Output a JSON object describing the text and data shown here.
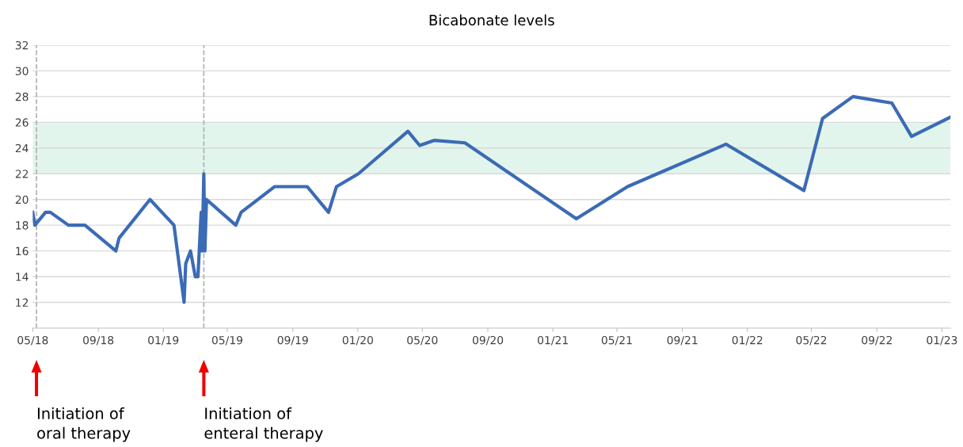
{
  "chart_data": {
    "type": "line",
    "title": "Bicabonate levels",
    "x": [
      "2018-05-01",
      "2018-05-05",
      "2018-05-25",
      "2018-06-03",
      "2018-07-07",
      "2018-08-07",
      "2018-10-04",
      "2018-10-10",
      "2018-12-07",
      "2019-01-21",
      "2019-02-09",
      "2019-02-12",
      "2019-02-21",
      "2019-03-02",
      "2019-03-07",
      "2019-03-13",
      "2019-03-15",
      "2019-03-18",
      "2019-03-20",
      "2019-03-23",
      "2019-05-17",
      "2019-05-27",
      "2019-07-29",
      "2019-09-28",
      "2019-11-07",
      "2019-11-22",
      "2020-01-02",
      "2020-04-04",
      "2020-04-26",
      "2020-05-24",
      "2020-07-20",
      "2021-02-14",
      "2021-05-21",
      "2021-11-22",
      "2022-04-17",
      "2022-05-22",
      "2022-07-18",
      "2022-09-29",
      "2022-11-05",
      "2023-01-17"
    ],
    "series": [
      {
        "color": "#3b6bb5",
        "values": [
          19,
          18,
          19,
          19,
          18,
          18,
          16,
          17,
          20,
          18,
          12,
          15,
          16,
          14,
          14,
          19,
          16,
          22,
          16,
          20,
          18,
          19,
          21,
          21,
          19,
          21,
          22,
          25.3,
          24.2,
          24.6,
          24.4,
          18.5,
          21,
          24.3,
          20.7,
          26.3,
          28,
          27.5,
          24.9,
          26.4
        ]
      }
    ],
    "xlim": [
      "2018-05-01",
      "2023-01-17"
    ],
    "xticks": [
      {
        "value": "2018-05-01",
        "label": "05/18"
      },
      {
        "value": "2018-09-01",
        "label": "09/18"
      },
      {
        "value": "2019-01-01",
        "label": "01/19"
      },
      {
        "value": "2019-05-01",
        "label": "05/19"
      },
      {
        "value": "2019-09-01",
        "label": "09/19"
      },
      {
        "value": "2020-01-01",
        "label": "01/20"
      },
      {
        "value": "2020-05-01",
        "label": "05/20"
      },
      {
        "value": "2020-09-01",
        "label": "09/20"
      },
      {
        "value": "2021-01-01",
        "label": "01/21"
      },
      {
        "value": "2021-05-01",
        "label": "05/21"
      },
      {
        "value": "2021-09-01",
        "label": "09/21"
      },
      {
        "value": "2022-01-01",
        "label": "01/22"
      },
      {
        "value": "2022-05-01",
        "label": "05/22"
      },
      {
        "value": "2022-09-01",
        "label": "09/22"
      },
      {
        "value": "2023-01-01",
        "label": "01/23"
      }
    ],
    "ylim": [
      10,
      32
    ],
    "yticks": [
      12,
      14,
      16,
      18,
      20,
      22,
      24,
      26,
      28,
      30,
      32
    ],
    "grid": "y",
    "marker": "none",
    "line_style": "solid",
    "bands": [
      {
        "axis": "y",
        "from": 22,
        "to": 26,
        "color": "#e2f5ec"
      }
    ],
    "ref_lines": [
      {
        "axis": "x",
        "value": "2018-05-08",
        "color": "#b0b0b0",
        "line_style": "dashed"
      },
      {
        "axis": "x",
        "value": "2019-03-18",
        "color": "#b0b0b0",
        "line_style": "dashed"
      }
    ],
    "annotations": [
      "Initiation of\noral therapy",
      "Initiation of\nenteral therapy"
    ]
  }
}
